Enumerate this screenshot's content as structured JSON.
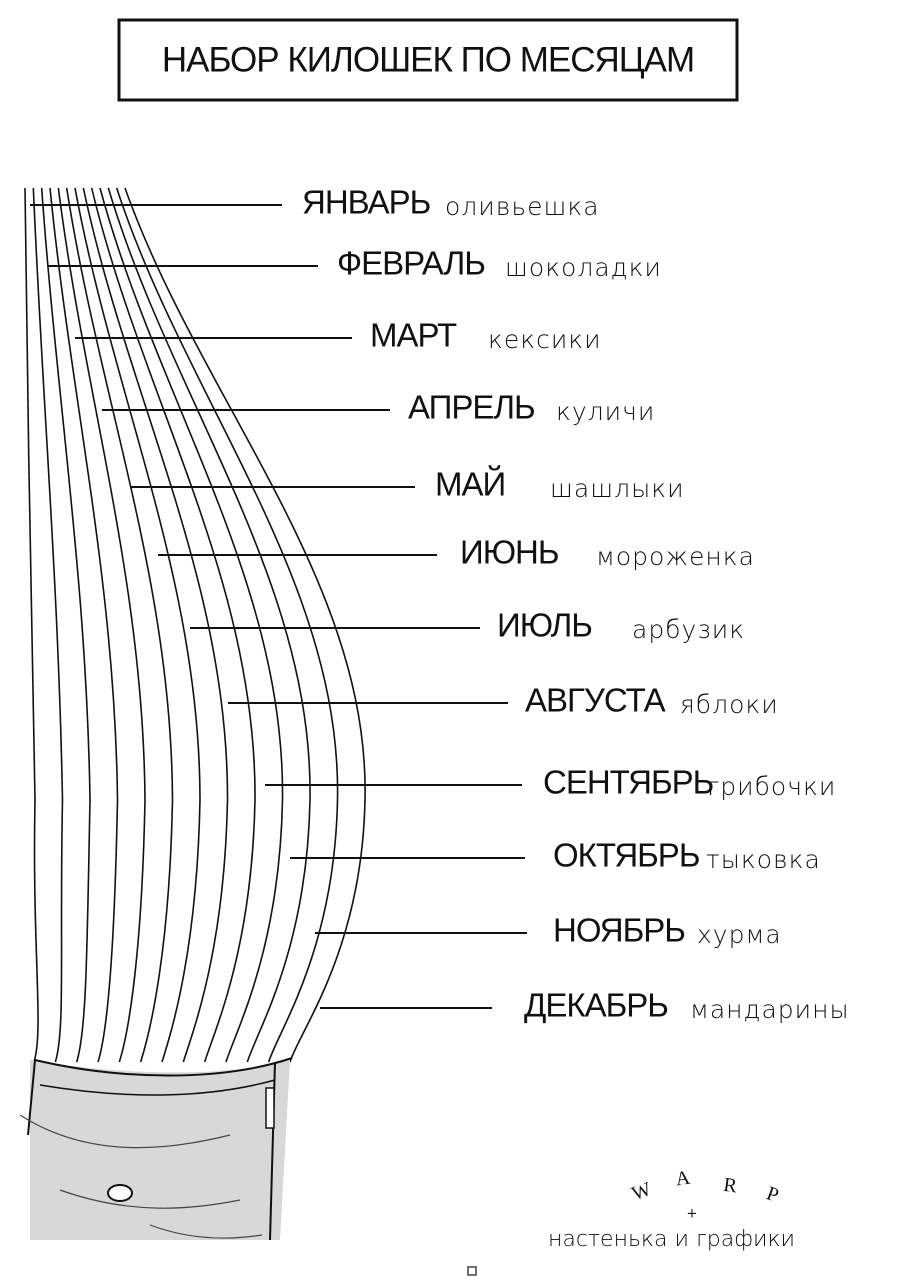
{
  "header": {
    "title": "НАБОР КИЛОШЕК ПО МЕСЯЦАМ"
  },
  "items": [
    {
      "month": "ЯНВАРЬ",
      "food": "оливьешка"
    },
    {
      "month": "ФЕВРАЛЬ",
      "food": "шоколадки"
    },
    {
      "month": "МАРТ",
      "food": "кексики"
    },
    {
      "month": "АПРЕЛЬ",
      "food": "куличи"
    },
    {
      "month": "МАЙ",
      "food": "шашлыки"
    },
    {
      "month": "ИЮНЬ",
      "food": "мороженка"
    },
    {
      "month": "ИЮЛЬ",
      "food": "арбузик"
    },
    {
      "month": "АВГУСТА",
      "food": "яблоки"
    },
    {
      "month": "СЕНТЯБРЬ",
      "food": "грибочки"
    },
    {
      "month": "ОКТЯБРЬ",
      "food": "тыковка"
    },
    {
      "month": "НОЯБРЬ",
      "food": "хурма"
    },
    {
      "month": "ДЕКАБРЬ",
      "food": "мандарины"
    }
  ],
  "credit": {
    "brand": [
      "W",
      "A",
      "R",
      "P"
    ],
    "plus": "+",
    "author": "настенька и графики"
  }
}
